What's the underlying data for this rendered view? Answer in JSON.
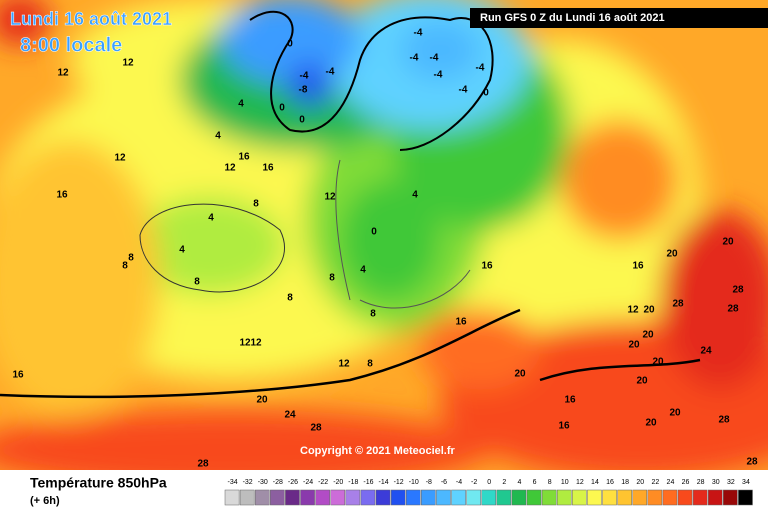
{
  "header": {
    "date": "Lundi 16 août 2021",
    "time": "8:00 locale",
    "run": "Run GFS 0 Z du Lundi 16 août 2021"
  },
  "copyright": "Copyright © 2021 Meteociel.fr",
  "footer": {
    "title": "Température 850hPa",
    "step": "(+ 6h)"
  },
  "map_labels": [
    12,
    12,
    0,
    -4,
    -8,
    -4,
    0,
    0,
    4,
    4,
    16,
    12,
    16,
    12,
    16,
    8,
    4,
    4,
    8,
    8,
    8,
    8,
    12,
    8,
    12,
    12,
    16,
    20,
    24,
    28,
    28,
    -4,
    -4,
    -4,
    -4,
    -4,
    -4,
    0,
    0,
    4,
    4,
    8,
    12,
    8,
    16,
    16,
    16,
    20,
    20,
    28,
    28,
    28,
    12,
    20,
    20,
    20,
    24,
    20,
    16,
    16,
    20,
    20,
    20,
    28,
    28,
    20
  ],
  "legend": {
    "values": [
      -34,
      -32,
      -30,
      -28,
      -26,
      -24,
      -22,
      -20,
      -18,
      -16,
      -14,
      -12,
      -10,
      -8,
      -6,
      -4,
      -2,
      0,
      2,
      4,
      6,
      8,
      10,
      12,
      14,
      16,
      18,
      20,
      22,
      24,
      26,
      28,
      30,
      32,
      34
    ],
    "colors": [
      "#d9d9d9",
      "#bdbdbd",
      "#a08ea8",
      "#8c5fa0",
      "#6a2a88",
      "#8a3aac",
      "#b24cc6",
      "#cc6cd8",
      "#a880e8",
      "#7a6cf0",
      "#3c3cd8",
      "#2050f0",
      "#2a78ff",
      "#3a9cff",
      "#4cb8ff",
      "#5fd2ff",
      "#70e8f0",
      "#30d8c8",
      "#20c890",
      "#20b850",
      "#40c838",
      "#80dc38",
      "#b0ec40",
      "#d8f448",
      "#fcf850",
      "#ffe040",
      "#ffc430",
      "#ffa828",
      "#ff8c24",
      "#ff6c20",
      "#f84a1c",
      "#e42a1c",
      "#c81414",
      "#980808",
      "#000000"
    ]
  }
}
